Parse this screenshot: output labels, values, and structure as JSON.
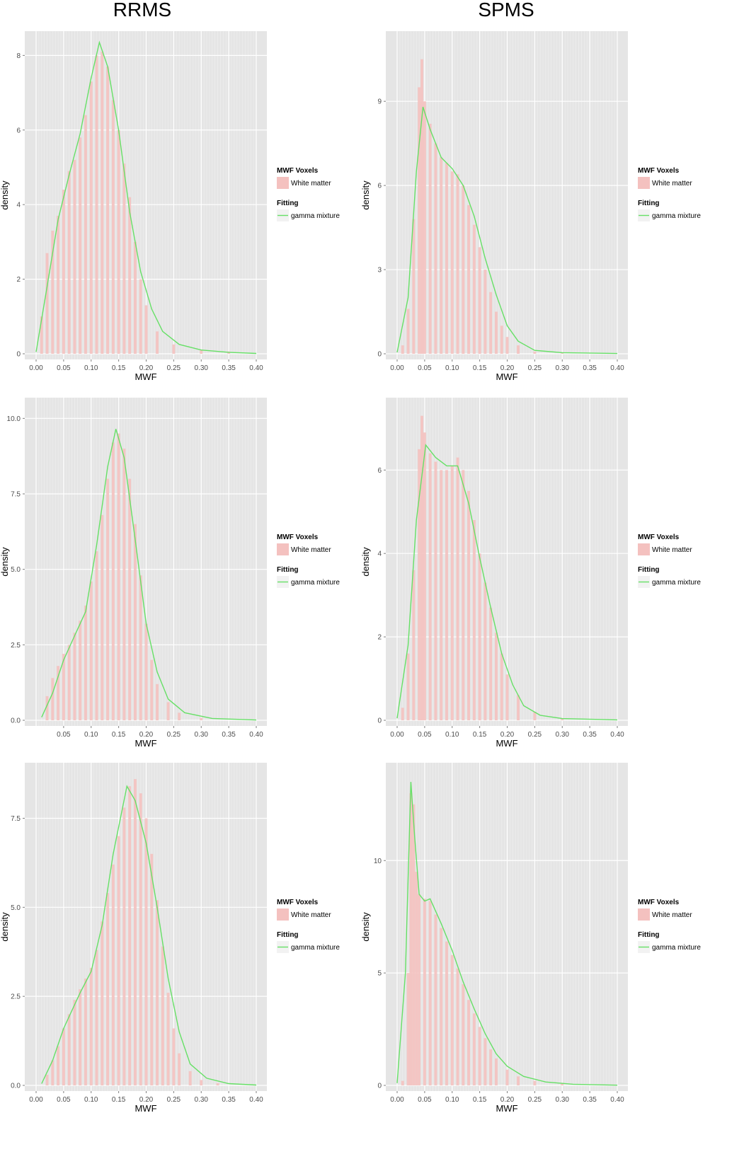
{
  "column_titles": [
    "RRMS",
    "SPMS"
  ],
  "colors": {
    "panel_bg": "#e5e5e5",
    "grid": "#ffffff",
    "bar": "#f4c1bf",
    "line": "#66e066",
    "legend_key_bg": "#f2f2f2"
  },
  "legend": {
    "voxels_title": "MWF Voxels",
    "voxels_label": "White matter",
    "fitting_title": "Fitting",
    "fitting_label": "gamma mixture"
  },
  "chart_data": [
    {
      "id": "rrms-1",
      "type": "bar",
      "title": "RRMS",
      "xlabel": "MWF",
      "ylabel": "density",
      "xlim": [
        0,
        0.4
      ],
      "ylim": [
        0,
        8.5
      ],
      "xticks": [
        "0.00",
        "0.05",
        "0.10",
        "0.15",
        "0.20",
        "0.25",
        "0.30",
        "0.35",
        "0.40"
      ],
      "yticks": [
        "0",
        "2",
        "4",
        "6",
        "8"
      ],
      "ytick_values": [
        0,
        2,
        4,
        6,
        8
      ],
      "bars": [
        [
          0.01,
          1.0
        ],
        [
          0.02,
          2.7
        ],
        [
          0.03,
          3.3
        ],
        [
          0.04,
          3.7
        ],
        [
          0.05,
          4.4
        ],
        [
          0.06,
          4.9
        ],
        [
          0.07,
          5.2
        ],
        [
          0.08,
          5.8
        ],
        [
          0.09,
          6.4
        ],
        [
          0.1,
          7.3
        ],
        [
          0.11,
          8.0
        ],
        [
          0.12,
          8.1
        ],
        [
          0.13,
          7.7
        ],
        [
          0.14,
          6.8
        ],
        [
          0.15,
          6.0
        ],
        [
          0.16,
          5.1
        ],
        [
          0.17,
          4.2
        ],
        [
          0.18,
          3.0
        ],
        [
          0.19,
          2.0
        ],
        [
          0.2,
          1.3
        ],
        [
          0.22,
          0.6
        ],
        [
          0.25,
          0.25
        ],
        [
          0.3,
          0.1
        ],
        [
          0.35,
          0.06
        ]
      ],
      "curve": [
        [
          0.0,
          0.05
        ],
        [
          0.02,
          1.8
        ],
        [
          0.04,
          3.6
        ],
        [
          0.06,
          4.8
        ],
        [
          0.08,
          5.9
        ],
        [
          0.1,
          7.4
        ],
        [
          0.115,
          8.35
        ],
        [
          0.13,
          7.7
        ],
        [
          0.15,
          6.0
        ],
        [
          0.17,
          3.8
        ],
        [
          0.19,
          2.2
        ],
        [
          0.21,
          1.2
        ],
        [
          0.23,
          0.6
        ],
        [
          0.26,
          0.25
        ],
        [
          0.3,
          0.1
        ],
        [
          0.35,
          0.04
        ],
        [
          0.4,
          0.01
        ]
      ]
    },
    {
      "id": "spms-1",
      "type": "bar",
      "title": "SPMS",
      "xlabel": "MWF",
      "ylabel": "density",
      "xlim": [
        0,
        0.4
      ],
      "ylim": [
        0,
        11.3
      ],
      "xticks": [
        "0.00",
        "0.05",
        "0.10",
        "0.15",
        "0.20",
        "0.25",
        "0.30",
        "0.35",
        "0.40"
      ],
      "yticks": [
        "0",
        "3",
        "6",
        "9"
      ],
      "ytick_values": [
        0,
        3,
        6,
        9
      ],
      "bars": [
        [
          0.01,
          0.3
        ],
        [
          0.02,
          1.6
        ],
        [
          0.03,
          4.8
        ],
        [
          0.04,
          9.5
        ],
        [
          0.045,
          10.5
        ],
        [
          0.05,
          9.0
        ],
        [
          0.06,
          8.2
        ],
        [
          0.07,
          7.5
        ],
        [
          0.08,
          7.0
        ],
        [
          0.09,
          6.8
        ],
        [
          0.1,
          6.5
        ],
        [
          0.11,
          6.4
        ],
        [
          0.12,
          6.0
        ],
        [
          0.13,
          5.3
        ],
        [
          0.14,
          4.6
        ],
        [
          0.15,
          3.8
        ],
        [
          0.16,
          3.0
        ],
        [
          0.17,
          2.2
        ],
        [
          0.18,
          1.5
        ],
        [
          0.19,
          1.0
        ],
        [
          0.2,
          0.6
        ],
        [
          0.22,
          0.3
        ],
        [
          0.25,
          0.08
        ],
        [
          0.3,
          0.03
        ]
      ],
      "curve": [
        [
          0.0,
          0.05
        ],
        [
          0.02,
          2.0
        ],
        [
          0.035,
          6.5
        ],
        [
          0.047,
          8.8
        ],
        [
          0.06,
          8.0
        ],
        [
          0.08,
          7.0
        ],
        [
          0.1,
          6.6
        ],
        [
          0.12,
          6.0
        ],
        [
          0.14,
          4.9
        ],
        [
          0.16,
          3.4
        ],
        [
          0.18,
          2.1
        ],
        [
          0.2,
          1.0
        ],
        [
          0.22,
          0.45
        ],
        [
          0.25,
          0.12
        ],
        [
          0.3,
          0.04
        ],
        [
          0.4,
          0.01
        ]
      ]
    },
    {
      "id": "rrms-2",
      "type": "bar",
      "title": "",
      "xlabel": "MWF",
      "ylabel": "density",
      "xlim": [
        0,
        0.4
      ],
      "ylim": [
        0,
        10.5
      ],
      "xticks": [
        "0.05",
        "0.10",
        "0.15",
        "0.20",
        "0.25",
        "0.30",
        "0.35",
        "0.40"
      ],
      "yticks": [
        "0.0",
        "2.5",
        "5.0",
        "7.5",
        "10.0"
      ],
      "ytick_values": [
        0,
        2.5,
        5,
        7.5,
        10
      ],
      "bars": [
        [
          0.02,
          0.8
        ],
        [
          0.03,
          1.4
        ],
        [
          0.04,
          1.8
        ],
        [
          0.05,
          2.2
        ],
        [
          0.06,
          2.5
        ],
        [
          0.07,
          2.9
        ],
        [
          0.08,
          3.3
        ],
        [
          0.09,
          3.8
        ],
        [
          0.1,
          4.6
        ],
        [
          0.11,
          5.6
        ],
        [
          0.12,
          6.8
        ],
        [
          0.13,
          8.0
        ],
        [
          0.14,
          9.2
        ],
        [
          0.15,
          9.5
        ],
        [
          0.16,
          9.0
        ],
        [
          0.17,
          8.0
        ],
        [
          0.18,
          6.5
        ],
        [
          0.19,
          4.8
        ],
        [
          0.2,
          3.2
        ],
        [
          0.21,
          2.0
        ],
        [
          0.22,
          1.2
        ],
        [
          0.24,
          0.6
        ],
        [
          0.26,
          0.25
        ],
        [
          0.3,
          0.08
        ]
      ],
      "curve": [
        [
          0.01,
          0.1
        ],
        [
          0.03,
          0.9
        ],
        [
          0.05,
          2.0
        ],
        [
          0.07,
          2.8
        ],
        [
          0.09,
          3.6
        ],
        [
          0.11,
          5.8
        ],
        [
          0.13,
          8.4
        ],
        [
          0.145,
          9.65
        ],
        [
          0.16,
          8.7
        ],
        [
          0.18,
          6.0
        ],
        [
          0.2,
          3.2
        ],
        [
          0.22,
          1.6
        ],
        [
          0.24,
          0.7
        ],
        [
          0.27,
          0.25
        ],
        [
          0.32,
          0.06
        ],
        [
          0.4,
          0.01
        ]
      ]
    },
    {
      "id": "spms-2",
      "type": "bar",
      "title": "",
      "xlabel": "MWF",
      "ylabel": "density",
      "xlim": [
        0,
        0.4
      ],
      "ylim": [
        0,
        7.6
      ],
      "xticks": [
        "0.00",
        "0.05",
        "0.10",
        "0.15",
        "0.20",
        "0.25",
        "0.30",
        "0.35",
        "0.40"
      ],
      "yticks": [
        "0",
        "2",
        "4",
        "6"
      ],
      "ytick_values": [
        0,
        2,
        4,
        6
      ],
      "bars": [
        [
          0.01,
          0.3
        ],
        [
          0.02,
          1.6
        ],
        [
          0.03,
          3.6
        ],
        [
          0.04,
          6.5
        ],
        [
          0.045,
          7.3
        ],
        [
          0.05,
          6.9
        ],
        [
          0.06,
          6.4
        ],
        [
          0.07,
          6.2
        ],
        [
          0.08,
          6.0
        ],
        [
          0.09,
          6.0
        ],
        [
          0.1,
          6.1
        ],
        [
          0.11,
          6.3
        ],
        [
          0.12,
          6.0
        ],
        [
          0.13,
          5.5
        ],
        [
          0.14,
          4.8
        ],
        [
          0.15,
          4.0
        ],
        [
          0.16,
          3.3
        ],
        [
          0.17,
          2.7
        ],
        [
          0.18,
          2.1
        ],
        [
          0.19,
          1.6
        ],
        [
          0.2,
          1.1
        ],
        [
          0.22,
          0.6
        ],
        [
          0.25,
          0.2
        ],
        [
          0.3,
          0.05
        ]
      ],
      "curve": [
        [
          0.0,
          0.05
        ],
        [
          0.02,
          1.8
        ],
        [
          0.035,
          4.8
        ],
        [
          0.052,
          6.6
        ],
        [
          0.07,
          6.3
        ],
        [
          0.09,
          6.1
        ],
        [
          0.11,
          6.1
        ],
        [
          0.13,
          5.2
        ],
        [
          0.15,
          3.9
        ],
        [
          0.17,
          2.7
        ],
        [
          0.19,
          1.6
        ],
        [
          0.21,
          0.85
        ],
        [
          0.23,
          0.35
        ],
        [
          0.26,
          0.12
        ],
        [
          0.3,
          0.04
        ],
        [
          0.4,
          0.01
        ]
      ]
    },
    {
      "id": "rrms-3",
      "type": "bar",
      "title": "",
      "xlabel": "MWF",
      "ylabel": "density",
      "xlim": [
        0,
        0.4
      ],
      "ylim": [
        0,
        8.9
      ],
      "xticks": [
        "0.00",
        "0.05",
        "0.10",
        "0.15",
        "0.20",
        "0.25",
        "0.30",
        "0.35",
        "0.40"
      ],
      "yticks": [
        "0.0",
        "2.5",
        "5.0",
        "7.5"
      ],
      "ytick_values": [
        0,
        2.5,
        5,
        7.5
      ],
      "bars": [
        [
          0.02,
          0.3
        ],
        [
          0.03,
          0.7
        ],
        [
          0.04,
          1.1
        ],
        [
          0.05,
          1.6
        ],
        [
          0.06,
          2.0
        ],
        [
          0.07,
          2.4
        ],
        [
          0.08,
          2.7
        ],
        [
          0.09,
          3.0
        ],
        [
          0.1,
          3.3
        ],
        [
          0.11,
          3.8
        ],
        [
          0.12,
          4.6
        ],
        [
          0.13,
          5.4
        ],
        [
          0.14,
          6.2
        ],
        [
          0.15,
          7.0
        ],
        [
          0.16,
          7.8
        ],
        [
          0.17,
          8.4
        ],
        [
          0.18,
          8.6
        ],
        [
          0.19,
          8.2
        ],
        [
          0.2,
          7.5
        ],
        [
          0.21,
          6.5
        ],
        [
          0.22,
          5.2
        ],
        [
          0.23,
          3.9
        ],
        [
          0.24,
          2.6
        ],
        [
          0.25,
          1.6
        ],
        [
          0.26,
          0.9
        ],
        [
          0.28,
          0.4
        ],
        [
          0.3,
          0.15
        ],
        [
          0.33,
          0.06
        ]
      ],
      "curve": [
        [
          0.01,
          0.05
        ],
        [
          0.03,
          0.7
        ],
        [
          0.05,
          1.6
        ],
        [
          0.08,
          2.6
        ],
        [
          0.1,
          3.2
        ],
        [
          0.12,
          4.5
        ],
        [
          0.14,
          6.5
        ],
        [
          0.165,
          8.4
        ],
        [
          0.18,
          8.0
        ],
        [
          0.2,
          6.8
        ],
        [
          0.22,
          5.0
        ],
        [
          0.24,
          3.0
        ],
        [
          0.26,
          1.5
        ],
        [
          0.28,
          0.6
        ],
        [
          0.31,
          0.2
        ],
        [
          0.35,
          0.05
        ],
        [
          0.4,
          0.01
        ]
      ]
    },
    {
      "id": "spms-3",
      "type": "bar",
      "title": "",
      "xlabel": "MWF",
      "ylabel": "density",
      "xlim": [
        0,
        0.4
      ],
      "ylim": [
        0,
        14.1
      ],
      "xticks": [
        "0.00",
        "0.05",
        "0.10",
        "0.15",
        "0.20",
        "0.25",
        "0.30",
        "0.35",
        "0.40"
      ],
      "yticks": [
        "0",
        "5",
        "10"
      ],
      "ytick_values": [
        0,
        5,
        10
      ],
      "bars": [
        [
          0.01,
          0.2
        ],
        [
          0.02,
          5.0
        ],
        [
          0.025,
          13.0
        ],
        [
          0.03,
          12.5
        ],
        [
          0.035,
          9.5
        ],
        [
          0.04,
          8.5
        ],
        [
          0.05,
          8.3
        ],
        [
          0.06,
          8.2
        ],
        [
          0.07,
          7.6
        ],
        [
          0.08,
          7.0
        ],
        [
          0.09,
          6.4
        ],
        [
          0.1,
          5.8
        ],
        [
          0.11,
          5.2
        ],
        [
          0.12,
          4.5
        ],
        [
          0.13,
          3.8
        ],
        [
          0.14,
          3.2
        ],
        [
          0.15,
          2.6
        ],
        [
          0.16,
          2.1
        ],
        [
          0.17,
          1.6
        ],
        [
          0.18,
          1.2
        ],
        [
          0.2,
          0.7
        ],
        [
          0.22,
          0.4
        ],
        [
          0.25,
          0.2
        ],
        [
          0.3,
          0.1
        ]
      ],
      "curve": [
        [
          0.0,
          0.1
        ],
        [
          0.015,
          5.0
        ],
        [
          0.025,
          13.5
        ],
        [
          0.032,
          11.0
        ],
        [
          0.04,
          8.5
        ],
        [
          0.05,
          8.2
        ],
        [
          0.06,
          8.3
        ],
        [
          0.08,
          7.2
        ],
        [
          0.1,
          6.0
        ],
        [
          0.12,
          4.6
        ],
        [
          0.14,
          3.4
        ],
        [
          0.16,
          2.3
        ],
        [
          0.18,
          1.4
        ],
        [
          0.2,
          0.85
        ],
        [
          0.23,
          0.4
        ],
        [
          0.27,
          0.15
        ],
        [
          0.32,
          0.05
        ],
        [
          0.4,
          0.01
        ]
      ]
    }
  ]
}
